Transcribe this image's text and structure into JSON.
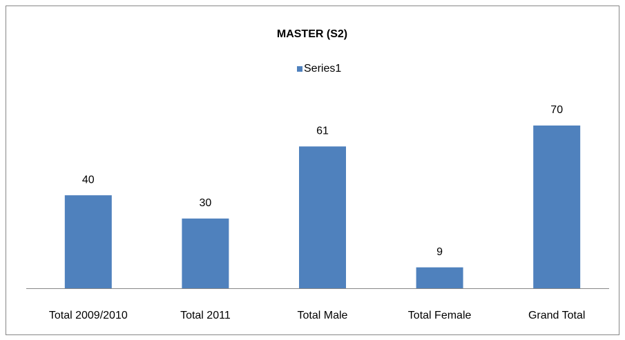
{
  "chart_data": {
    "type": "bar",
    "title": "MASTER (S2)",
    "categories": [
      "Total 2009/2010",
      "Total 2011",
      "Total Male",
      "Total Female",
      "Grand Total"
    ],
    "series": [
      {
        "name": "Series1",
        "color": "#4f81bd",
        "values": [
          40,
          30,
          61,
          9,
          70
        ]
      }
    ],
    "legend": "top",
    "grid": false
  }
}
